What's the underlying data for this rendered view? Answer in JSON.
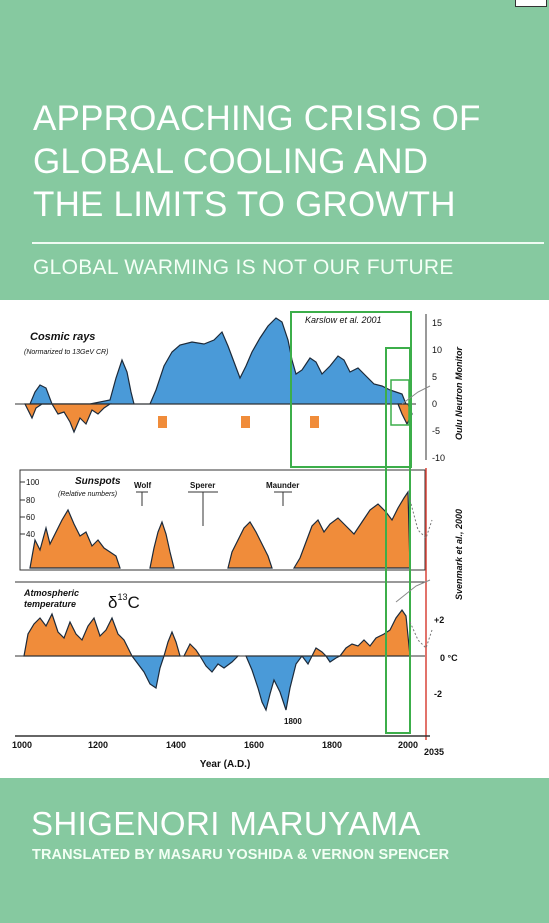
{
  "cover": {
    "title_lines": [
      "APPROACHING CRISIS OF",
      "GLOBAL COOLING AND",
      "THE LIMITS TO GROWTH"
    ],
    "subtitle": "GLOBAL WARMING IS NOT OUR FUTURE",
    "author": "SHIGENORI MARUYAMA",
    "translators": "TRANSLATED BY MASARU YOSHIDA & VERNON SPENCER",
    "background_color": "#86c9a0"
  },
  "figure": {
    "x_axis_label": "Year (A.D.)",
    "x_ticks": [
      "1000",
      "1200",
      "1400",
      "1600",
      "1800",
      "2000",
      "2035"
    ],
    "panels": {
      "cosmic": {
        "title": "Cosmic rays",
        "note": "(Normarized to 13GeV CR)",
        "right_axis_label": "Oulu Neutron Monitor",
        "right_ticks": [
          "15",
          "10",
          "5",
          "0",
          "-5",
          "-10"
        ],
        "box_label": "Karslow et al. 2001"
      },
      "sunspots": {
        "title": "Sunspots",
        "note": "(Relative numbers)",
        "left_ticks": [
          "100",
          "80",
          "60",
          "40"
        ],
        "minima": [
          "Wolf",
          "Sperer",
          "Maunder"
        ],
        "right_axis_label": "Svenmark et al., 2000"
      },
      "temperature": {
        "title_line1": "Atmospheric",
        "title_line2": "temperature",
        "isotope": "δ",
        "isotope_mass": "13",
        "isotope_element": "C",
        "right_ticks": [
          "+2",
          "0 °C",
          "-2"
        ],
        "annotation": "1800"
      }
    },
    "colors": {
      "positive_fill": "#4a9ad8",
      "negative_fill": "#f08c3a",
      "box_green": "#3cae4a",
      "red_line": "#d8453a"
    }
  }
}
